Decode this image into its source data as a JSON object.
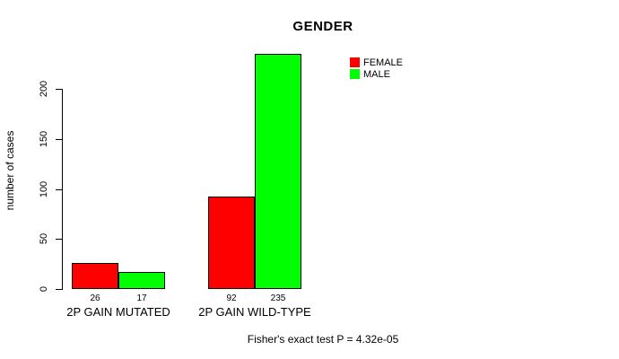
{
  "title": "GENDER",
  "ylabel": "number of cases",
  "footnote": "Fisher's exact test P = 4.32e-05",
  "legend": [
    {
      "label": "FEMALE",
      "color": "#FF0000"
    },
    {
      "label": "MALE",
      "color": "#00FF00"
    }
  ],
  "chart_data": {
    "type": "bar",
    "title": "GENDER",
    "xlabel": "",
    "ylabel": "number of cases",
    "categories": [
      "2P GAIN MUTATED",
      "2P GAIN WILD-TYPE"
    ],
    "series": [
      {
        "name": "FEMALE",
        "color": "#FF0000",
        "values": [
          26,
          92
        ]
      },
      {
        "name": "MALE",
        "color": "#00FF00",
        "values": [
          17,
          235
        ]
      }
    ],
    "bar_value_labels": [
      [
        26,
        17
      ],
      [
        92,
        235
      ]
    ],
    "yticks": [
      0,
      50,
      100,
      150,
      200
    ],
    "ylim": [
      0,
      237
    ],
    "grid": false,
    "legend_position": "top-right",
    "legend_box": false,
    "bar_border_color": "#000000",
    "annotation": "Fisher's exact test P = 4.32e-05"
  }
}
